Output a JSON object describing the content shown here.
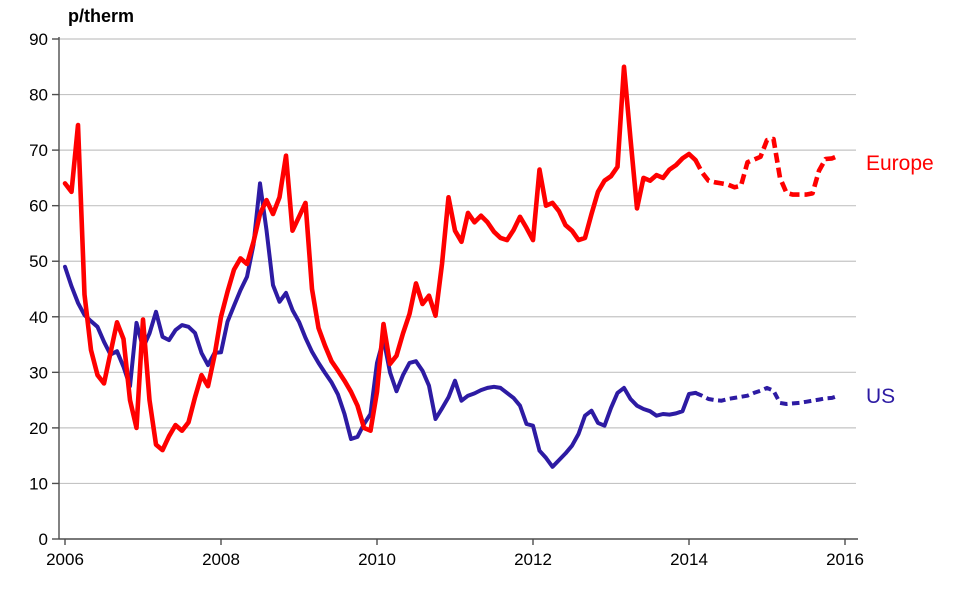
{
  "chart_data": {
    "type": "line",
    "unit_label": "p/therm",
    "title": "",
    "xlabel": "",
    "ylabel": "p/therm",
    "x_axis": {
      "tick_years": [
        2006,
        2008,
        2010,
        2012,
        2014,
        2016
      ],
      "start_year": 2006,
      "points_per_year": 12
    },
    "y_axis": {
      "ticks": [
        0,
        10,
        20,
        30,
        40,
        50,
        60,
        70,
        80,
        90
      ],
      "min": 0,
      "max": 90
    },
    "grid": "horizontal-only",
    "legend_position": "right-of-lines",
    "forecast_start_index": 97,
    "forecast_style": "dashed",
    "colors": {
      "europe": "#ff0000",
      "us": "#2d1ba3",
      "gridline": "#c4c4c4",
      "axis": "#4d4d4d",
      "text": "#000000"
    },
    "series": [
      {
        "name": "Europe",
        "color": "#ff0000",
        "values": [
          64,
          62.5,
          74.5,
          44,
          34,
          29.5,
          28,
          33.5,
          39,
          36,
          25,
          20,
          39.5,
          25,
          17,
          16,
          18.5,
          20.5,
          19.5,
          21,
          25.5,
          29.5,
          27.5,
          33,
          40,
          44.5,
          48.5,
          50.5,
          49.5,
          53.5,
          58.5,
          61,
          58.5,
          61.5,
          69,
          55.5,
          58,
          60.5,
          45,
          38,
          34.8,
          32,
          30.3,
          28.5,
          26.5,
          24,
          20,
          19.5,
          26.5,
          38.7,
          31.5,
          33,
          37,
          40.5,
          46,
          42.3,
          43.8,
          40.2,
          49.5,
          61.5,
          55.5,
          53.5,
          58.7,
          57,
          58.2,
          57,
          55.3,
          54.2,
          53.8,
          55.6,
          58,
          56,
          53.8,
          66.5,
          60,
          60.5,
          59,
          56.5,
          55.5,
          53.8,
          54.2,
          58.5,
          62.5,
          64.5,
          65.3,
          67,
          85,
          72,
          59.5,
          65,
          64.5,
          65.5,
          65,
          66.5,
          67.3,
          68.5,
          69.3,
          68.2,
          66,
          64.5,
          64.2,
          64,
          63.8,
          63.3,
          63.6,
          67.8,
          68.3,
          68.8,
          71.8,
          72,
          65,
          62.3,
          62,
          62,
          62,
          62.2,
          66.3,
          68.4,
          68.5,
          69
        ]
      },
      {
        "name": "US",
        "color": "#2d1ba3",
        "values": [
          49,
          45.5,
          42.5,
          40.3,
          39.2,
          38.2,
          35.5,
          33.2,
          33.8,
          31,
          27.5,
          38.9,
          34.4,
          37,
          40.9,
          36.4,
          35.8,
          37.6,
          38.5,
          38.2,
          37.1,
          33.5,
          31.3,
          33.5,
          33.6,
          39.1,
          42,
          44.8,
          47.2,
          53,
          64,
          55.6,
          45.7,
          42.7,
          44.3,
          41.2,
          39.1,
          36.2,
          33.7,
          31.7,
          29.9,
          28.2,
          26,
          22.5,
          18,
          18.4,
          20.7,
          22.5,
          31.7,
          36,
          30,
          26.6,
          29.5,
          31.7,
          32,
          30.3,
          27.6,
          21.6,
          23.5,
          25.5,
          28.5,
          24.9,
          25.8,
          26.2,
          26.8,
          27.2,
          27.4,
          27.2,
          26.3,
          25.4,
          24,
          20.7,
          20.4,
          15.9,
          14.6,
          13,
          14.2,
          15.4,
          16.8,
          18.9,
          22.2,
          23.1,
          20.9,
          20.4,
          23.6,
          26.3,
          27.2,
          25.2,
          24,
          23.4,
          23,
          22.2,
          22.5,
          22.4,
          22.6,
          23,
          26.1,
          26.3,
          25.8,
          25.2,
          25,
          24.9,
          25.2,
          25.4,
          25.6,
          25.8,
          26.3,
          26.7,
          27.2,
          26.7,
          24.5,
          24.3,
          24.4,
          24.5,
          24.7,
          24.9,
          25.1,
          25.3,
          25.4,
          25.8
        ]
      }
    ]
  }
}
